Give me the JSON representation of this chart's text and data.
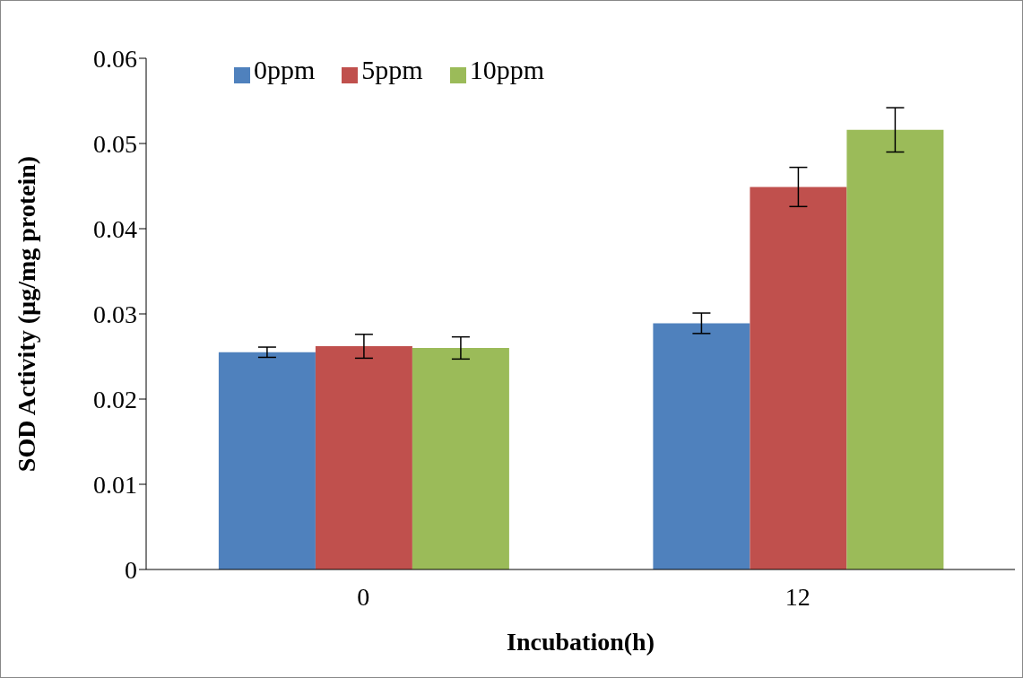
{
  "chart_data": {
    "type": "bar",
    "xlabel": "Incubation(h)",
    "ylabel": "SOD Activity (µg/mg protein)",
    "categories": [
      "0",
      "12"
    ],
    "series": [
      {
        "name": "0ppm",
        "color": "#4f81bd",
        "values": [
          0.0255,
          0.0289
        ],
        "errors": [
          0.0006,
          0.0012
        ]
      },
      {
        "name": "5ppm",
        "color": "#c0504d",
        "values": [
          0.0262,
          0.0449
        ],
        "errors": [
          0.0014,
          0.0023
        ]
      },
      {
        "name": "10ppm",
        "color": "#9bbb59",
        "values": [
          0.026,
          0.0516
        ],
        "errors": [
          0.0013,
          0.0026
        ]
      }
    ],
    "ylim": [
      0,
      0.06
    ],
    "yticks": [
      0,
      0.01,
      0.02,
      0.03,
      0.04,
      0.05,
      0.06
    ],
    "grid": false,
    "legend": "top left"
  }
}
